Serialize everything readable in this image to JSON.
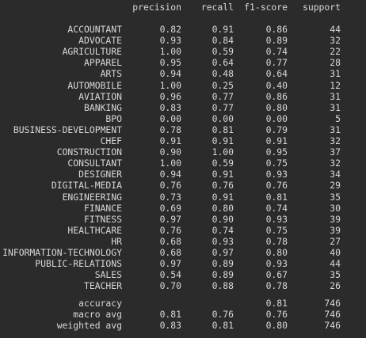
{
  "headers": {
    "precision": "precision",
    "recall": "recall",
    "f1": "f1-score",
    "support": "support"
  },
  "classes": [
    {
      "label": "ACCOUNTANT",
      "precision": "0.82",
      "recall": "0.91",
      "f1": "0.86",
      "support": "44"
    },
    {
      "label": "ADVOCATE",
      "precision": "0.93",
      "recall": "0.84",
      "f1": "0.89",
      "support": "32"
    },
    {
      "label": "AGRICULTURE",
      "precision": "1.00",
      "recall": "0.59",
      "f1": "0.74",
      "support": "22"
    },
    {
      "label": "APPAREL",
      "precision": "0.95",
      "recall": "0.64",
      "f1": "0.77",
      "support": "28"
    },
    {
      "label": "ARTS",
      "precision": "0.94",
      "recall": "0.48",
      "f1": "0.64",
      "support": "31"
    },
    {
      "label": "AUTOMOBILE",
      "precision": "1.00",
      "recall": "0.25",
      "f1": "0.40",
      "support": "12"
    },
    {
      "label": "AVIATION",
      "precision": "0.96",
      "recall": "0.77",
      "f1": "0.86",
      "support": "31"
    },
    {
      "label": "BANKING",
      "precision": "0.83",
      "recall": "0.77",
      "f1": "0.80",
      "support": "31"
    },
    {
      "label": "BPO",
      "precision": "0.00",
      "recall": "0.00",
      "f1": "0.00",
      "support": "5"
    },
    {
      "label": "BUSINESS-DEVELOPMENT",
      "precision": "0.78",
      "recall": "0.81",
      "f1": "0.79",
      "support": "31"
    },
    {
      "label": "CHEF",
      "precision": "0.91",
      "recall": "0.91",
      "f1": "0.91",
      "support": "32"
    },
    {
      "label": "CONSTRUCTION",
      "precision": "0.90",
      "recall": "1.00",
      "f1": "0.95",
      "support": "37"
    },
    {
      "label": "CONSULTANT",
      "precision": "1.00",
      "recall": "0.59",
      "f1": "0.75",
      "support": "32"
    },
    {
      "label": "DESIGNER",
      "precision": "0.94",
      "recall": "0.91",
      "f1": "0.93",
      "support": "34"
    },
    {
      "label": "DIGITAL-MEDIA",
      "precision": "0.76",
      "recall": "0.76",
      "f1": "0.76",
      "support": "29"
    },
    {
      "label": "ENGINEERING",
      "precision": "0.73",
      "recall": "0.91",
      "f1": "0.81",
      "support": "35"
    },
    {
      "label": "FINANCE",
      "precision": "0.69",
      "recall": "0.80",
      "f1": "0.74",
      "support": "30"
    },
    {
      "label": "FITNESS",
      "precision": "0.97",
      "recall": "0.90",
      "f1": "0.93",
      "support": "39"
    },
    {
      "label": "HEALTHCARE",
      "precision": "0.76",
      "recall": "0.74",
      "f1": "0.75",
      "support": "39"
    },
    {
      "label": "HR",
      "precision": "0.68",
      "recall": "0.93",
      "f1": "0.78",
      "support": "27"
    },
    {
      "label": "INFORMATION-TECHNOLOGY",
      "precision": "0.68",
      "recall": "0.97",
      "f1": "0.80",
      "support": "40"
    },
    {
      "label": "PUBLIC-RELATIONS",
      "precision": "0.97",
      "recall": "0.89",
      "f1": "0.93",
      "support": "44"
    },
    {
      "label": "SALES",
      "precision": "0.54",
      "recall": "0.89",
      "f1": "0.67",
      "support": "35"
    },
    {
      "label": "TEACHER",
      "precision": "0.70",
      "recall": "0.88",
      "f1": "0.78",
      "support": "26"
    }
  ],
  "summary": [
    {
      "label": "accuracy",
      "precision": "",
      "recall": "",
      "f1": "0.81",
      "support": "746"
    },
    {
      "label": "macro avg",
      "precision": "0.81",
      "recall": "0.76",
      "f1": "0.76",
      "support": "746"
    },
    {
      "label": "weighted avg",
      "precision": "0.83",
      "recall": "0.81",
      "f1": "0.80",
      "support": "746"
    }
  ],
  "colors": {
    "background": "#2b2b2b",
    "text": "#d8d8d8"
  }
}
